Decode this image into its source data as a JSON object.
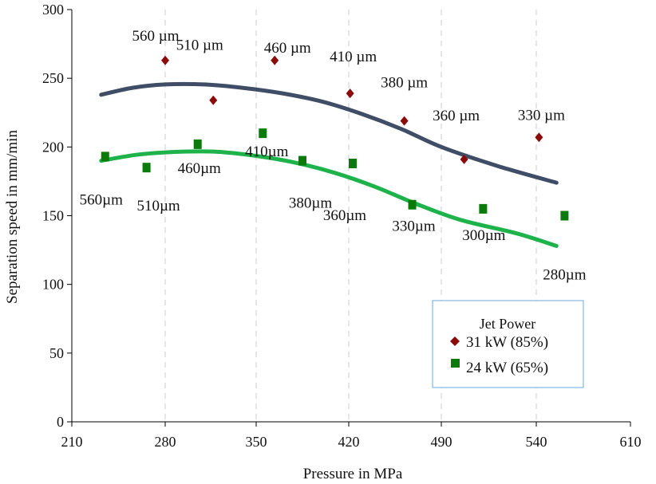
{
  "chart_data": {
    "type": "scatter",
    "xlabel": "Pressure in MPa",
    "ylabel": "Separation speed in mm/min",
    "xlim": [
      210,
      610
    ],
    "ylim": [
      0,
      300
    ],
    "xticks": [
      210,
      280,
      350,
      420,
      490,
      540,
      610
    ],
    "yticks": [
      0,
      50,
      100,
      150,
      200,
      250,
      300
    ],
    "grid": "vertical dashed",
    "legend": {
      "title": "Jet Power",
      "placement": "bottom-right",
      "entries": [
        "31 kW (85%)",
        "24 kW (65%)"
      ]
    },
    "series": [
      {
        "name": "31 kW (85%)",
        "marker": "diamond",
        "color": "#8b0a0a",
        "points": [
          {
            "x": 280,
            "y": 263,
            "label": "560 µm"
          },
          {
            "x": 317,
            "y": 234,
            "label": "510 µm"
          },
          {
            "x": 364,
            "y": 263,
            "label": "460 µm"
          },
          {
            "x": 421,
            "y": 239,
            "label": "410 µm"
          },
          {
            "x": 462,
            "y": 219,
            "label": "380 µm"
          },
          {
            "x": 502,
            "y": 191,
            "label": "360 µm"
          },
          {
            "x": 542,
            "y": 207,
            "label": "330 µm"
          }
        ],
        "trend": {
          "color": "#3f4d66",
          "points": [
            [
              232,
              238
            ],
            [
              255,
              243
            ],
            [
              280,
              245.5
            ],
            [
              310,
              245.5
            ],
            [
              340,
              243
            ],
            [
              370,
              239
            ],
            [
              400,
              233
            ],
            [
              430,
              224
            ],
            [
              460,
              213
            ],
            [
              490,
              200
            ],
            [
              520,
              186
            ],
            [
              555,
              174
            ]
          ]
        }
      },
      {
        "name": "24 kW (65%)",
        "marker": "square",
        "color": "#0a7a0a",
        "points": [
          {
            "x": 235,
            "y": 193,
            "label": "560µm"
          },
          {
            "x": 266,
            "y": 185,
            "label": "510µm"
          },
          {
            "x": 305,
            "y": 202,
            "label": "460µm"
          },
          {
            "x": 355,
            "y": 210,
            "label": "410µm"
          },
          {
            "x": 385,
            "y": 190,
            "label": "380µm"
          },
          {
            "x": 423,
            "y": 188,
            "label": "360µm"
          },
          {
            "x": 468,
            "y": 158,
            "label": "330µm"
          },
          {
            "x": 512,
            "y": 155,
            "label": "300µm"
          },
          {
            "x": 561,
            "y": 150,
            "label": "280µm"
          }
        ],
        "trend": {
          "color": "#1db34a",
          "points": [
            [
              232,
              190
            ],
            [
              260,
              194.5
            ],
            [
              290,
              196.5
            ],
            [
              320,
              196.5
            ],
            [
              350,
              193.5
            ],
            [
              380,
              188.5
            ],
            [
              410,
              181
            ],
            [
              440,
              171
            ],
            [
              470,
              159
            ],
            [
              500,
              147
            ],
            [
              530,
              137
            ],
            [
              555,
              128
            ]
          ]
        }
      }
    ]
  }
}
